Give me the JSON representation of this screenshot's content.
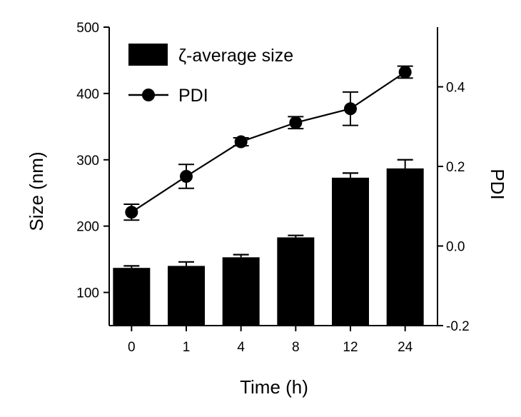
{
  "chart_data": {
    "type": "bar",
    "categories": [
      "0",
      "1",
      "4",
      "8",
      "12",
      "24"
    ],
    "xlabel": "Time (h)",
    "ylabel": "Size (nm)",
    "y2label": "PDI",
    "ylim": [
      50,
      500
    ],
    "y2lim": [
      -0.2,
      0.55
    ],
    "yticks": [
      100,
      200,
      300,
      400,
      500
    ],
    "y2ticks": [
      "-0.2",
      "0.0",
      "0.2",
      "0.4"
    ],
    "grid": false,
    "legend_position": "top-left",
    "bar_color": "#000000",
    "series": [
      {
        "name": "ζ-average size",
        "type": "bar",
        "axis": "left",
        "values": [
          137,
          140,
          153,
          183,
          273,
          287
        ],
        "errors": [
          3,
          6,
          4,
          3,
          7,
          13
        ]
      },
      {
        "name": "PDI",
        "type": "line",
        "axis": "right",
        "values": [
          0.085,
          0.175,
          0.262,
          0.31,
          0.345,
          0.437
        ],
        "errors": [
          0.02,
          0.03,
          0.01,
          0.015,
          0.042,
          0.015
        ]
      }
    ]
  }
}
